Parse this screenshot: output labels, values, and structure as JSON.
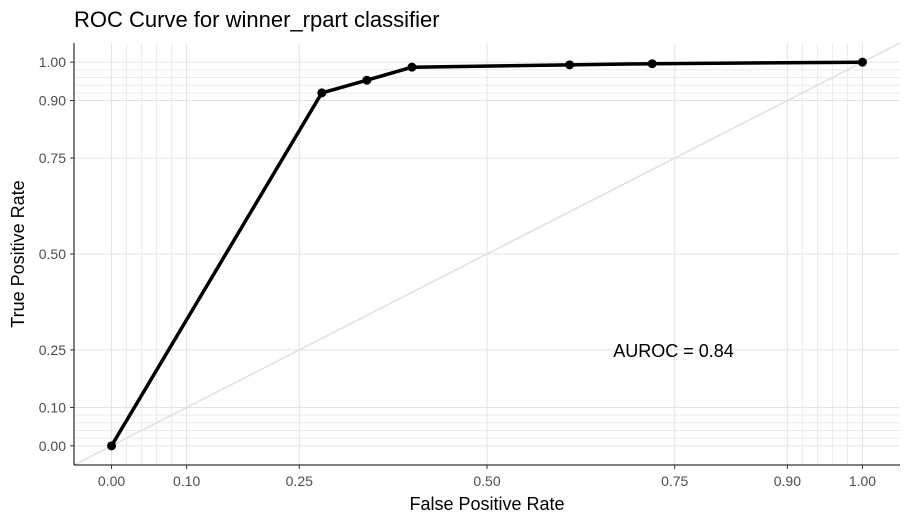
{
  "chart_data": {
    "type": "line",
    "title": "ROC Curve for winner_rpart classifier",
    "xlabel": "False Positive Rate",
    "ylabel": "True Positive Rate",
    "xlim": [
      -0.05,
      1.05
    ],
    "ylim": [
      -0.05,
      1.05
    ],
    "x_ticks": [
      0.0,
      0.1,
      0.25,
      0.5,
      0.75,
      0.9,
      1.0
    ],
    "x_tick_labels": [
      "0.00",
      "0.10",
      "0.25",
      "0.50",
      "0.75",
      "0.90",
      "1.00"
    ],
    "y_ticks": [
      0.0,
      0.1,
      0.25,
      0.5,
      0.75,
      0.9,
      1.0
    ],
    "y_tick_labels": [
      "0.00",
      "0.10",
      "0.25",
      "0.50",
      "0.75",
      "0.90",
      "1.00"
    ],
    "x_minor_grid": [
      0.02,
      0.04,
      0.06,
      0.08,
      0.92,
      0.94,
      0.96,
      0.98
    ],
    "y_minor_grid": [
      0.02,
      0.04,
      0.06,
      0.08,
      0.92,
      0.94,
      0.96,
      0.98
    ],
    "grid": true,
    "series": [
      {
        "x": [
          0.0,
          0.28,
          0.34,
          0.4,
          0.61,
          0.72,
          1.0
        ],
        "y": [
          0.0,
          0.92,
          0.953,
          0.987,
          0.993,
          0.996,
          1.0
        ],
        "color": "#000000"
      }
    ],
    "reference_line": {
      "x": [
        -0.05,
        1.05
      ],
      "y": [
        -0.05,
        1.05
      ],
      "color": "#e0e0e0"
    },
    "annotation": {
      "text": "AUROC = 0.84",
      "x": 0.77,
      "y": 0.25
    }
  }
}
